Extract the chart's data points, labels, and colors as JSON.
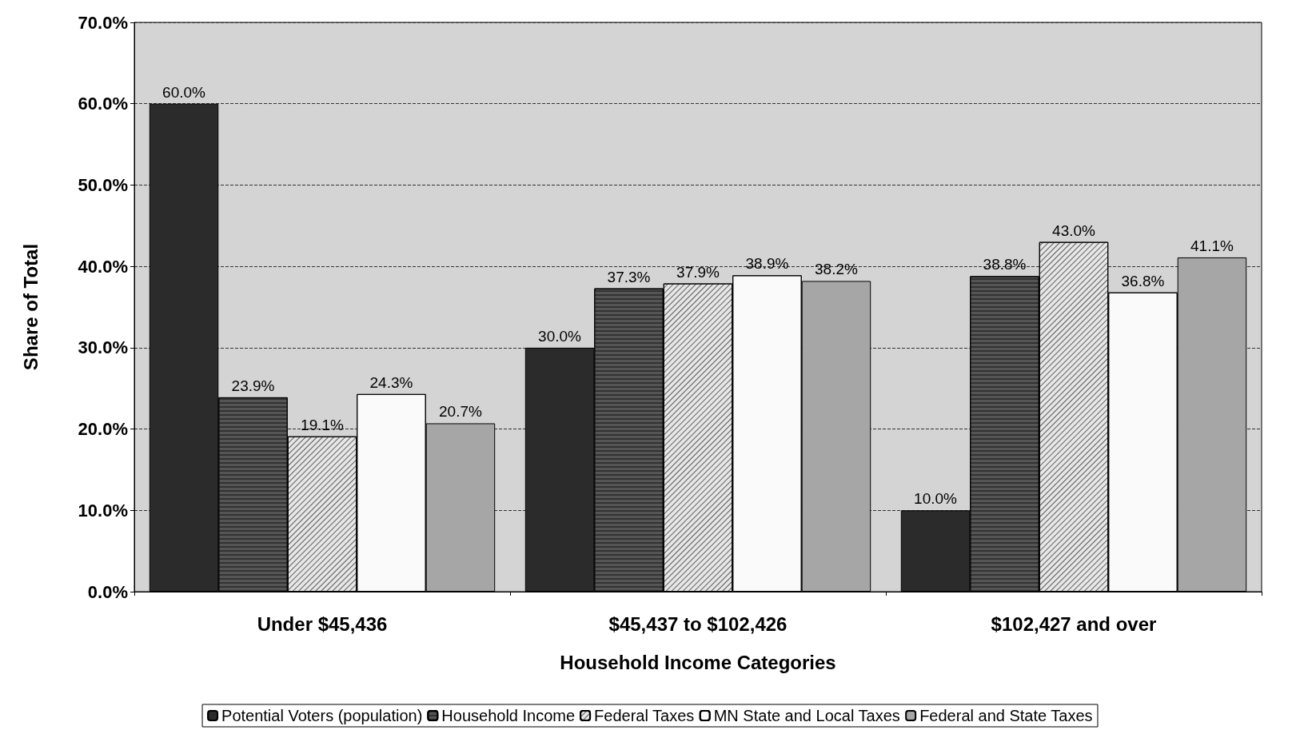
{
  "chart_data": {
    "type": "bar",
    "xlabel": "Household Income Categories",
    "ylabel": "Share of Total",
    "categories": [
      "Under $45,436",
      "$45,437 to $102,426",
      "$102,427 and over"
    ],
    "series": [
      {
        "name": "Potential Voters (population)",
        "color": "#2b2b2b",
        "values": [
          60.0,
          30.0,
          10.0
        ],
        "value_labels": [
          "60.0%",
          "30.0%",
          "10.0%"
        ]
      },
      {
        "name": "Household Income",
        "color": "#555555",
        "values": [
          23.9,
          37.3,
          38.8
        ],
        "value_labels": [
          "23.9%",
          "37.3%",
          "38.8%"
        ]
      },
      {
        "name": "Federal Taxes",
        "color": "#e6e6e6",
        "values": [
          19.1,
          37.9,
          43.0
        ],
        "value_labels": [
          "19.1%",
          "37.9%",
          "43.0%"
        ]
      },
      {
        "name": "MN State and Local Taxes",
        "color": "#fafafa",
        "values": [
          24.3,
          38.9,
          36.8
        ],
        "value_labels": [
          "24.3%",
          "38.9%",
          "36.8%"
        ]
      },
      {
        "name": "Federal and State Taxes",
        "color": "#a6a6a6",
        "values": [
          20.7,
          38.2,
          41.1
        ],
        "value_labels": [
          "20.7%",
          "38.2%",
          "41.1%"
        ]
      }
    ],
    "ylim": [
      0,
      70
    ],
    "yticks": [
      {
        "value": 0,
        "label": "0.0%"
      },
      {
        "value": 10,
        "label": "10.0%"
      },
      {
        "value": 20,
        "label": "20.0%"
      },
      {
        "value": 30,
        "label": "30.0%"
      },
      {
        "value": 40,
        "label": "40.0%"
      },
      {
        "value": 50,
        "label": "50.0%"
      },
      {
        "value": 60,
        "label": "60.0%"
      },
      {
        "value": 70,
        "label": "70.0%"
      }
    ],
    "grid": "y",
    "legend": "bottom"
  }
}
